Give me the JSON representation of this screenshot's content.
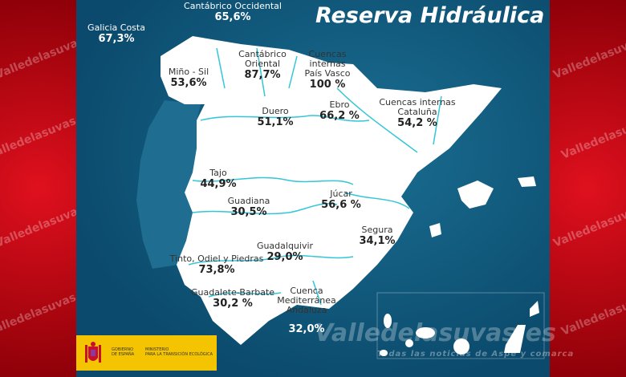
{
  "title": "Reserva Hidráulica",
  "watermark": "Valledelasuvas.es",
  "watermark_tagline": "Todas las noticias de Aspe y comarca",
  "government": {
    "line1": "GOBIERNO",
    "line2": "DE ESPAÑA",
    "ministry1": "MINISTERIO",
    "ministry2": "PARA LA TRANSICIÓN ECOLÓGICA"
  },
  "colors": {
    "background_red": "#b5000f",
    "sea": "#0b4a6c",
    "land": "#ffffff",
    "rivers": "#33c6d8",
    "gov_yellow": "#f5c400"
  },
  "basins": [
    {
      "name": "Cantábrico Occidental",
      "value": "65,6%"
    },
    {
      "name": "Galicia Costa",
      "value": "67,3%"
    },
    {
      "name": "Miño - Sil",
      "value": "53,6%"
    },
    {
      "name": "Cantábrico Oriental",
      "value": "87,7%"
    },
    {
      "name": "Cuencas internas País Vasco",
      "value": "100 %"
    },
    {
      "name": "Ebro",
      "value": "66,2 %"
    },
    {
      "name": "Cuencas internas Cataluña",
      "value": "54,2 %"
    },
    {
      "name": "Duero",
      "value": "51,1%"
    },
    {
      "name": "Tajo",
      "value": "44,9%"
    },
    {
      "name": "Guadiana",
      "value": "30,5%"
    },
    {
      "name": "Júcar",
      "value": "56,6 %"
    },
    {
      "name": "Segura",
      "value": "34,1%"
    },
    {
      "name": "Guadalquivir",
      "value": "29,0%"
    },
    {
      "name": "Tinto, Odiel y Piedras",
      "value": "73,8%"
    },
    {
      "name": "Guadalete-Barbate",
      "value": "30,2 %"
    },
    {
      "name": "Cuenca Mediterránea Andaluza",
      "value": "32,0%"
    }
  ]
}
